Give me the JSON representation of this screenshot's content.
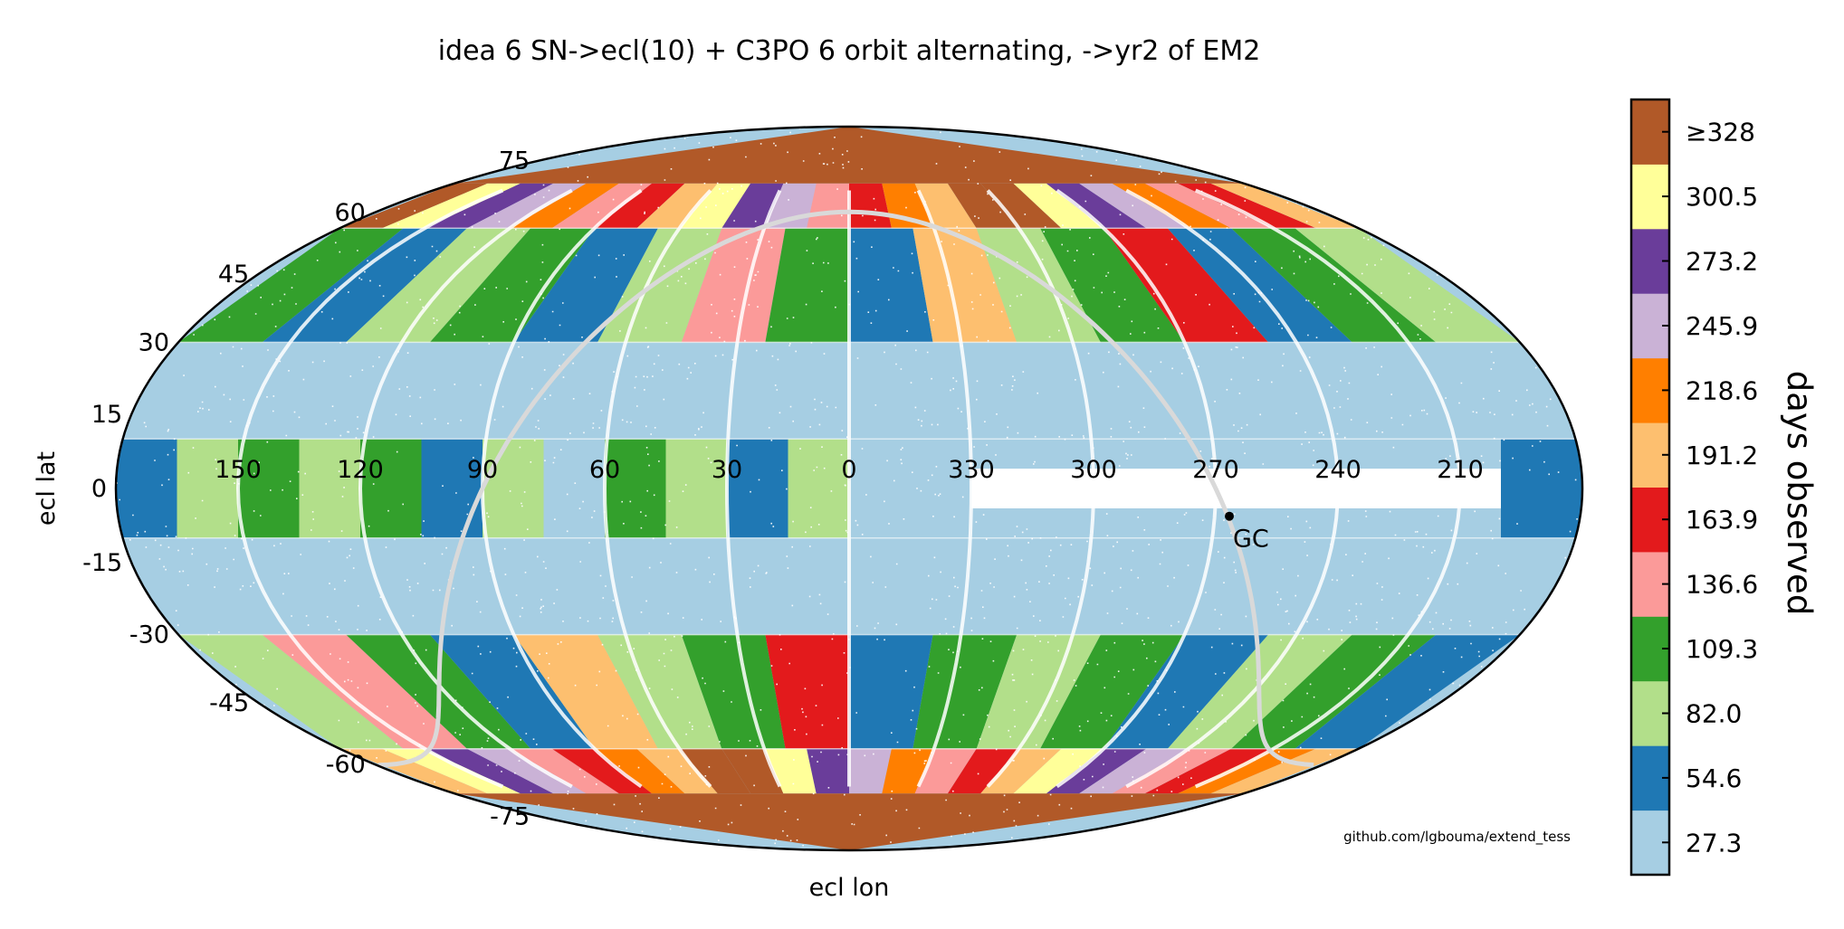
{
  "chart_data": {
    "type": "heatmap",
    "projection": "mollweide",
    "title": "idea 6 SN->ecl(10) + C3PO 6 orbit alternating, ->yr2 of EM2",
    "xlabel": "ecl lon",
    "ylabel": "ecl lat",
    "lon_ticks": [
      "150",
      "120",
      "90",
      "60",
      "30",
      "0",
      "330",
      "300",
      "270",
      "240",
      "210"
    ],
    "lat_ticks": [
      "75",
      "60",
      "45",
      "30",
      "15",
      "0",
      "-15",
      "-30",
      "-45",
      "-60",
      "-75"
    ],
    "lat_tick_values": [
      75,
      60,
      45,
      30,
      15,
      0,
      -15,
      -30,
      -45,
      -60,
      -75
    ],
    "lon_tick_values": [
      150,
      120,
      90,
      60,
      30,
      0,
      330,
      300,
      270,
      240,
      210
    ],
    "colorbar": {
      "label": "days observed",
      "tick_labels": [
        "27.3",
        "54.6",
        "82.0",
        "109.3",
        "136.6",
        "163.9",
        "191.2",
        "218.6",
        "245.9",
        "273.2",
        "300.5",
        "≥328"
      ],
      "colors": [
        "#a6cee3",
        "#1f78b4",
        "#b2df8a",
        "#33a02c",
        "#fb9a99",
        "#e31a1c",
        "#fdbf6f",
        "#ff7f00",
        "#cab2d6",
        "#6a3d9a",
        "#ffff99",
        "#b15928"
      ]
    },
    "annotations": [
      {
        "label": "GC",
        "lon": 266.4,
        "lat": -5.6
      }
    ],
    "galactic_plane": true,
    "credit": "github.com/lgbouma/extend_tess",
    "regions": [
      {
        "lat_range": [
          -90,
          -68
        ],
        "days": "≥328"
      },
      {
        "lat_range": [
          68,
          90
        ],
        "days": "≥328"
      },
      {
        "lat_range": [
          -68,
          -56
        ],
        "days": "mixed 136.6–300.5"
      },
      {
        "lat_range": [
          56,
          68
        ],
        "days": "mixed 136.6–300.5"
      },
      {
        "lat_range": [
          -56,
          -30
        ],
        "days": "mixed 54.6–191.2"
      },
      {
        "lat_range": [
          30,
          56
        ],
        "days": "mixed 54.6–191.2"
      },
      {
        "lat_range": [
          -30,
          -10
        ],
        "days": "27.3"
      },
      {
        "lat_range": [
          10,
          30
        ],
        "days": "27.3"
      },
      {
        "lat_range": [
          -10,
          10
        ],
        "days": "mixed 27.3–109.3, unobserved near 200–330"
      }
    ]
  }
}
